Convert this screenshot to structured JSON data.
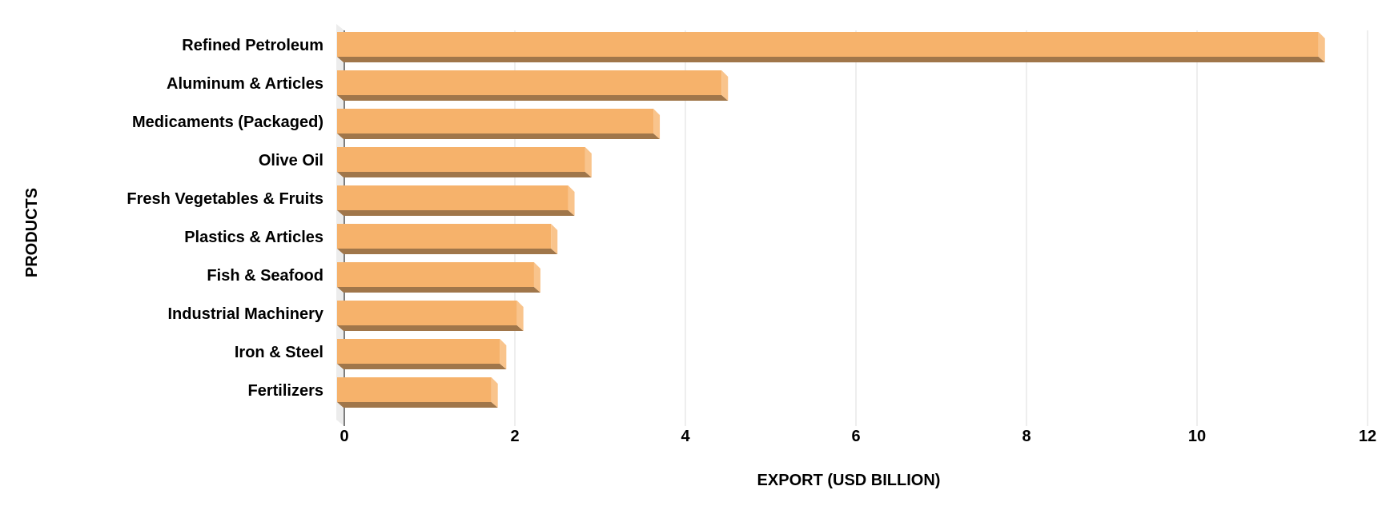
{
  "chart_data": {
    "type": "bar",
    "orientation": "horizontal",
    "style": "3d",
    "categories": [
      "Refined Petroleum",
      "Aluminum & Articles",
      "Medicaments (Packaged)",
      "Olive Oil",
      "Fresh Vegetables & Fruits",
      "Plastics & Articles",
      "Fish & Seafood",
      "Industrial Machinery",
      "Iron & Steel",
      "Fertilizers"
    ],
    "values": [
      11.5,
      4.5,
      3.7,
      2.9,
      2.7,
      2.5,
      2.3,
      2.1,
      1.9,
      1.8
    ],
    "xlabel": "EXPORT (USD BILLION)",
    "ylabel": "PRODUCTS",
    "xlim": [
      0,
      12
    ],
    "xticks": [
      "0",
      "2",
      "4",
      "6",
      "8",
      "10",
      "12"
    ],
    "grid": true,
    "colors": {
      "bar_face": "#f6b26b",
      "bar_bottom": "#a0764a",
      "bar_side": "#f9c48c",
      "grid": "#dddddd"
    }
  }
}
